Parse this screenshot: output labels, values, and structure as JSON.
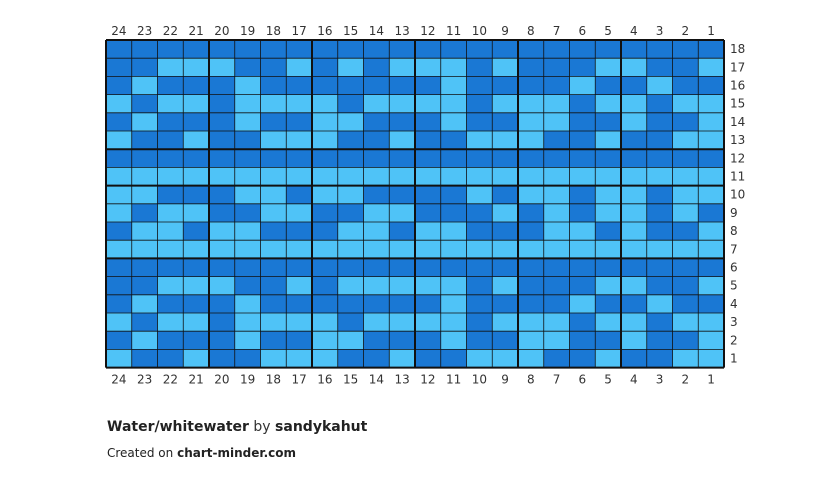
{
  "title": "Water/whitewater",
  "by_label": "by",
  "author": "sandykahut",
  "created_label": "Created on",
  "site": "chart-minder.com",
  "colors": {
    "dark": "#1a78d4",
    "light": "#4fc3f7",
    "grid": "#111111"
  },
  "chart_data": {
    "type": "table",
    "columns": 24,
    "rows": 18,
    "column_labels": [
      "24",
      "23",
      "22",
      "21",
      "20",
      "19",
      "18",
      "17",
      "16",
      "15",
      "14",
      "13",
      "12",
      "11",
      "10",
      "9",
      "8",
      "7",
      "6",
      "5",
      "4",
      "3",
      "2",
      "1"
    ],
    "row_labels": [
      "18",
      "17",
      "16",
      "15",
      "14",
      "13",
      "12",
      "11",
      "10",
      "9",
      "8",
      "7",
      "6",
      "5",
      "4",
      "3",
      "2",
      "1"
    ],
    "legend": "D = dark blue, L = light blue; grid rows listed top (row 18) to bottom (row 1), columns left (24) to right (1)",
    "grid": [
      "DDDDDDDDDDDDDDDDDDDDDDDD",
      "DDLLLDDLDLDLLLDLDDDLLDDL",
      "DLDDDLDDDDDDDLDDDDLDDLDD",
      "LDLLDLLLLDLLLLDLLLDLLDLL",
      "DLDDDLDDLLDDDLDDLLDDLDDL",
      "LDDLDDLLLDDLDDLLLDDLDDLL",
      "DDDDDDDDDDDDDDDDDDDDDDDD",
      "LLLLLLLLLLLLLLLLLLLLLLLL",
      "LLDDDLLDLLDDDDLDLLDLLDLL",
      "LDLLDDLLDDLLDDDLDLDLLDLD",
      "DLLDLLDDDLLDLLDDDLLDLDDL",
      "LLLLLLLLLLLLLLLLLLLLLLLL",
      "DDDDDDDDDDDDDDDDDDDDDDDD",
      "DDLLLDDLDLLLLLDLDDDLLDDL",
      "DLDDDLDDDDDDDLDDDDLDDLDD",
      "LDLLDLLLLDLLLLDLLLDLLDLL",
      "DLDDDLDDLLDDDLDDLLDDLDDL",
      "LDDLDDLLLDDLDDLLLDDLDDLL"
    ]
  }
}
